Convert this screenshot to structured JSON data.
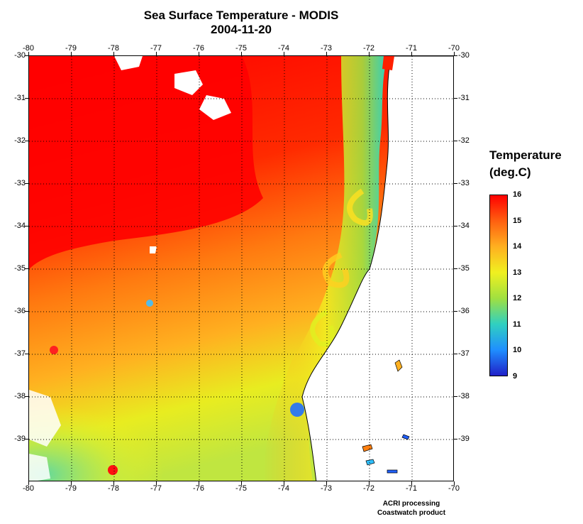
{
  "title": "Sea Surface Temperature - MODIS",
  "date": "2004-11-20",
  "map": {
    "lon_ticks": [
      "-80",
      "-79",
      "-78",
      "-77",
      "-76",
      "-75",
      "-74",
      "-73",
      "-72",
      "-71",
      "-70"
    ],
    "lat_ticks": [
      "-30",
      "-31",
      "-32",
      "-33",
      "-34",
      "-35",
      "-36",
      "-37",
      "-38",
      "-39"
    ],
    "lon_range": [
      -80,
      -70
    ],
    "lat_range": [
      -30,
      -40
    ],
    "grid": true,
    "grid_style": "dotted",
    "land_color": "#ffffff",
    "ocean_palette": [
      "#2020c8",
      "#1f8fff",
      "#30d0c0",
      "#a0e040",
      "#f0f020",
      "#ffb020",
      "#ff6010",
      "#ff0000"
    ]
  },
  "colorbar": {
    "title_line1": "Temperature",
    "title_line2": "(deg.C)",
    "min": 9,
    "max": 16,
    "labels": [
      "16",
      "15",
      "14",
      "13",
      "12",
      "11",
      "10",
      "9"
    ],
    "colors": [
      "#ff0000",
      "#ff6010",
      "#ffb020",
      "#f0f020",
      "#a0e040",
      "#30d0c0",
      "#1f8fff",
      "#2020c8"
    ]
  },
  "credits": {
    "line1": "ACRI processing",
    "line2": "Coastwatch product"
  }
}
